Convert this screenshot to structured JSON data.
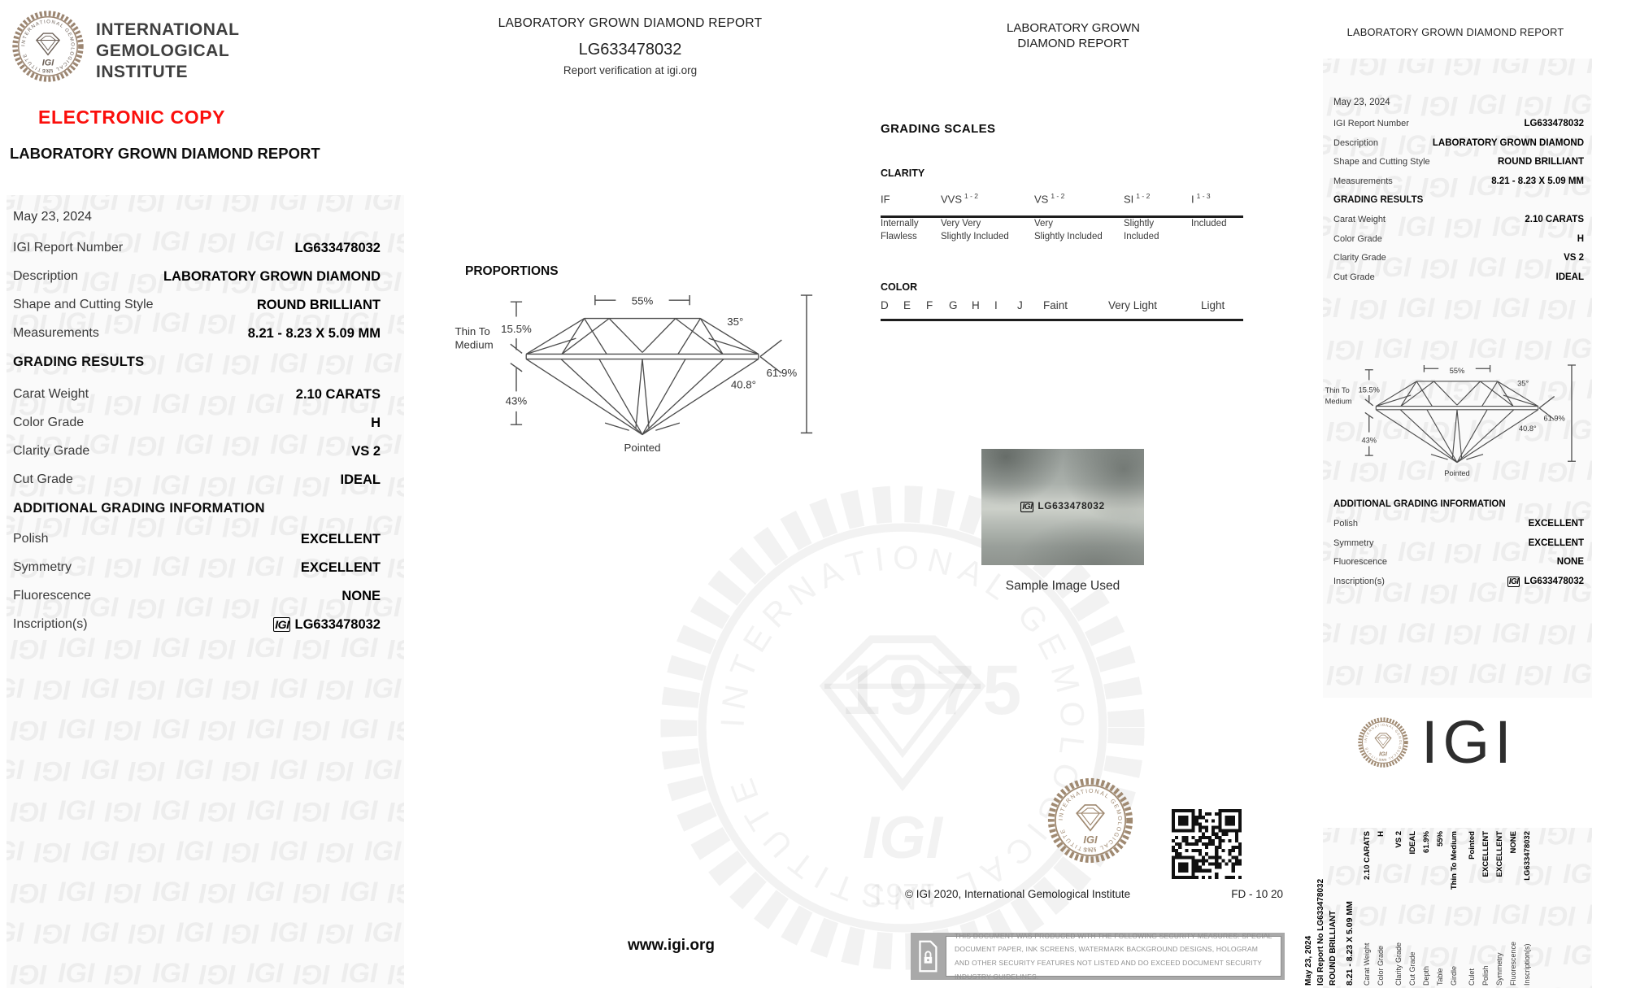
{
  "brand": {
    "institute_lines": [
      "INTERNATIONAL",
      "GEMOLOGICAL",
      "INSTITUTE"
    ],
    "institute_arc": "INTERNATIONAL GEMOLOGICAL INSTITUTE",
    "wordmark": "IGI",
    "seal_year": "1975",
    "electronic_copy": "ELECTRONIC COPY",
    "seal_color": "#9c8672",
    "seal_ink": "#6d6158",
    "red": "#fb0f0c"
  },
  "report": {
    "title": "LABORATORY GROWN DIAMOND REPORT",
    "date": "May 23, 2024",
    "section_grading": "GRADING RESULTS",
    "section_additional": "ADDITIONAL GRADING INFORMATION",
    "rows": [
      {
        "label": "IGI Report Number",
        "value": "LG633478032"
      },
      {
        "label": "Description",
        "value": "LABORATORY GROWN DIAMOND"
      },
      {
        "label": "Shape and Cutting Style",
        "value": "ROUND BRILLIANT"
      },
      {
        "label": "Measurements",
        "value": "8.21 - 8.23 X 5.09 MM"
      },
      {
        "label": "Carat Weight",
        "value": "2.10 CARATS"
      },
      {
        "label": "Color Grade",
        "value": "H"
      },
      {
        "label": "Clarity Grade",
        "value": "VS 2"
      },
      {
        "label": "Cut Grade",
        "value": "IDEAL"
      },
      {
        "label": "Polish",
        "value": "EXCELLENT"
      },
      {
        "label": "Symmetry",
        "value": "EXCELLENT"
      },
      {
        "label": "Fluorescence",
        "value": "NONE"
      },
      {
        "label": "Inscription(s)",
        "value": "LG633478032"
      }
    ]
  },
  "center_panel": {
    "title": "LABORATORY GROWN DIAMOND REPORT",
    "report_number": "LG633478032",
    "verification": "Report verification at igi.org",
    "proportions_heading": "PROPORTIONS",
    "website": "www.igi.org"
  },
  "proportions": {
    "table_pct": "55%",
    "crown_angle": "35°",
    "girdle_line1": "Thin To",
    "girdle_line2": "Medium",
    "crown_height": "15.5%",
    "pavilion_depth": "43%",
    "pavilion_angle": "40.8°",
    "total_depth": "61.9%",
    "culet": "Pointed"
  },
  "scales_panel": {
    "title_line1": "LABORATORY GROWN",
    "title_line2": "DIAMOND REPORT",
    "heading": "GRADING SCALES",
    "clarity_heading": "CLARITY",
    "clarity_grades": [
      {
        "code": "IF",
        "range": "",
        "desc1": "Internally",
        "desc2": "Flawless"
      },
      {
        "code": "VVS",
        "range": "1 - 2",
        "desc1": "Very Very",
        "desc2": "Slightly Included"
      },
      {
        "code": "VS",
        "range": "1 - 2",
        "desc1": "Very",
        "desc2": "Slightly Included"
      },
      {
        "code": "SI",
        "range": "1 - 2",
        "desc1": "Slightly",
        "desc2": "Included"
      },
      {
        "code": "I",
        "range": "1 - 3",
        "desc1": "Included",
        "desc2": ""
      }
    ],
    "color_heading": "COLOR",
    "color_letters": [
      "D",
      "E",
      "F",
      "G",
      "H",
      "I",
      "J"
    ],
    "color_ranges": [
      "Faint",
      "Very Light",
      "Light"
    ],
    "sample_caption": "Sample Image Used",
    "sample_inscription": "LG633478032",
    "copyright": "© IGI 2020, International Gemological Institute",
    "form_code": "FD - 10 20",
    "security_text": "THIS DOCUMENT WAS PRODUCED WITH THE FOLLOWING SECURITY MEASURES: SPECIAL DOCUMENT PAPER, INK SCREENS, WATERMARK BACKGROUND DESIGNS, HOLOGRAM AND OTHER SECURITY FEATURES NOT LISTED AND DO EXCEED DOCUMENT SECURITY INDUSTRY GUIDELINES."
  },
  "side_strip": {
    "date": "May 23, 2024",
    "report_no": "IGI Report No LG633478032",
    "shape": "ROUND BRILLIANT",
    "measurements": "8.21 - 8.23 X 5.09 MM",
    "rows": [
      {
        "label": "Carat Weight",
        "value": "2.10 CARATS"
      },
      {
        "label": "Color Grade",
        "value": "H"
      },
      {
        "label": "Clarity Grade",
        "value": "VS 2"
      },
      {
        "label": "Cut Grade",
        "value": "IDEAL"
      },
      {
        "label": "Depth",
        "value": "61.9%"
      },
      {
        "label": "Table",
        "value": "55%"
      },
      {
        "label": "Girdle",
        "value": "Thin To Medium"
      },
      {
        "label": "Culet",
        "value": "Pointed"
      },
      {
        "label": "Polish",
        "value": "EXCELLENT"
      },
      {
        "label": "Symmetry",
        "value": "EXCELLENT"
      },
      {
        "label": "Fluorescence",
        "value": "NONE"
      },
      {
        "label": "Inscription(s)",
        "value": "LG633478032"
      }
    ]
  }
}
